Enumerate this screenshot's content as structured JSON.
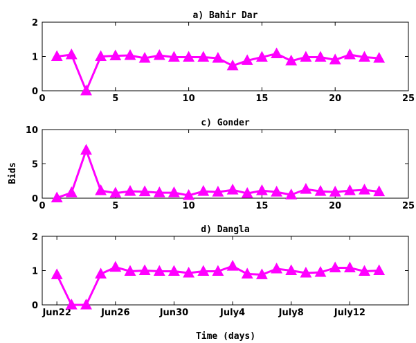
{
  "shared": {
    "ylabel": "Bids",
    "xlabel": "Time (days)",
    "color": "#ff00ff"
  },
  "chart_data": [
    {
      "type": "line",
      "title": "a) Bahir Dar",
      "xlim": [
        0,
        25
      ],
      "ylim": [
        0,
        2
      ],
      "xticks": [
        0,
        5,
        10,
        15,
        20,
        25
      ],
      "xtick_labels": [
        "0",
        "5",
        "10",
        "15",
        "20",
        "25"
      ],
      "yticks": [
        0,
        1,
        2
      ],
      "ytick_labels": [
        "0",
        "1",
        "2"
      ],
      "x": [
        1,
        2,
        3,
        4,
        5,
        6,
        7,
        8,
        9,
        10,
        11,
        12,
        13,
        14,
        15,
        16,
        17,
        18,
        19,
        20,
        21,
        22,
        23
      ],
      "series": [
        {
          "values": [
            1.0,
            1.05,
            0.0,
            1.0,
            1.02,
            1.03,
            0.95,
            1.03,
            0.98,
            0.98,
            0.98,
            0.95,
            0.73,
            0.88,
            0.98,
            1.08,
            0.87,
            0.98,
            0.98,
            0.9,
            1.05,
            0.98,
            0.95
          ]
        }
      ]
    },
    {
      "type": "line",
      "title": "c) Gonder",
      "xlim": [
        0,
        25
      ],
      "ylim": [
        0,
        10
      ],
      "xticks": [
        0,
        5,
        10,
        15,
        20,
        25
      ],
      "xtick_labels": [
        "0",
        "5",
        "10",
        "15",
        "20",
        "25"
      ],
      "yticks": [
        0,
        5,
        10
      ],
      "ytick_labels": [
        "0",
        "5",
        "10"
      ],
      "x": [
        1,
        2,
        3,
        4,
        5,
        6,
        7,
        8,
        9,
        10,
        11,
        12,
        13,
        14,
        15,
        16,
        17,
        18,
        19,
        20,
        21,
        22,
        23
      ],
      "series": [
        {
          "values": [
            0.05,
            0.8,
            7.0,
            1.1,
            0.75,
            1.0,
            0.95,
            0.8,
            0.8,
            0.4,
            1.0,
            0.9,
            1.2,
            0.7,
            1.1,
            0.9,
            0.5,
            1.3,
            1.0,
            0.9,
            1.1,
            1.2,
            0.95
          ]
        }
      ]
    },
    {
      "type": "line",
      "title": "d) Dangla",
      "xlim": [
        0,
        25
      ],
      "ylim": [
        0,
        2
      ],
      "xticks": [
        1,
        5,
        9,
        13,
        17,
        21
      ],
      "xtick_labels": [
        "Jun22",
        "Jun26",
        "Jun30",
        "July4",
        "July8",
        "July12"
      ],
      "yticks": [
        0,
        1,
        2
      ],
      "ytick_labels": [
        "0",
        "1",
        "2"
      ],
      "x": [
        1,
        2,
        3,
        4,
        5,
        6,
        7,
        8,
        9,
        10,
        11,
        12,
        13,
        14,
        15,
        16,
        17,
        18,
        19,
        20,
        21,
        22,
        23
      ],
      "series": [
        {
          "values": [
            0.88,
            0.0,
            0.0,
            0.9,
            1.1,
            0.98,
            1.0,
            0.98,
            0.98,
            0.93,
            0.98,
            0.98,
            1.13,
            0.9,
            0.88,
            1.05,
            1.0,
            0.93,
            0.95,
            1.08,
            1.08,
            0.98,
            1.0
          ]
        }
      ]
    }
  ]
}
